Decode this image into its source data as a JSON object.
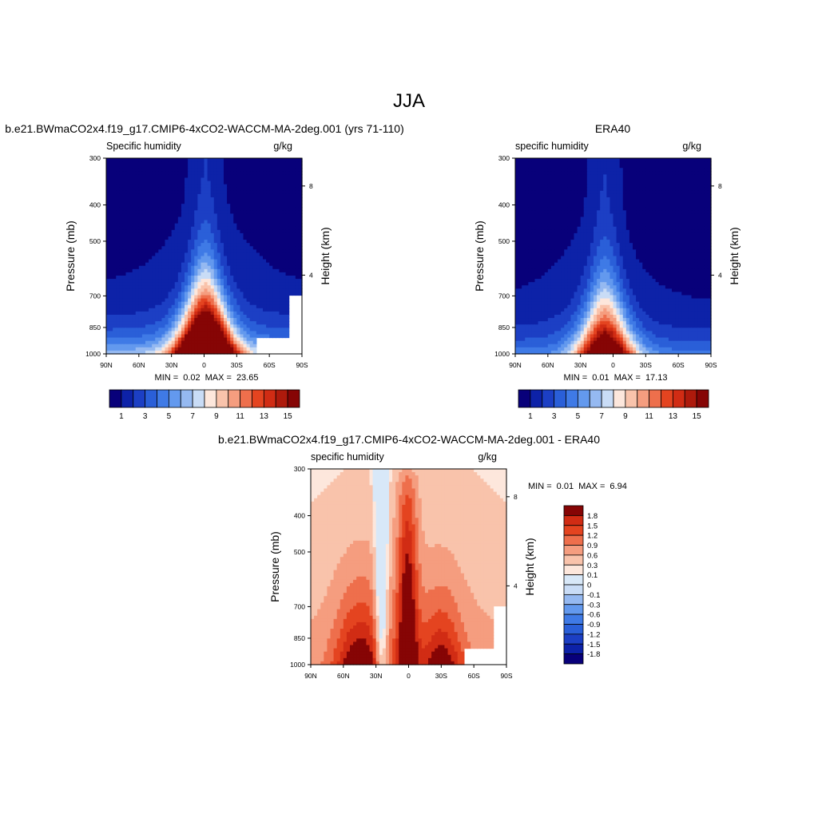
{
  "page_title": "JJA",
  "chart_data": [
    {
      "id": "model",
      "type": "contour",
      "title": "b.e21.BWmaCO2x4.f19_g17.CMIP6-4xCO2-WACCM-MA-2deg.001 (yrs 71-110)",
      "left_label": "Specific humidity",
      "right_label": "g/kg",
      "ylabel": "Pressure (mb)",
      "ylabel_right": "Height (km)",
      "x_ticks": [
        "90N",
        "60N",
        "30N",
        "0",
        "30S",
        "60S",
        "90S"
      ],
      "y_ticks": [
        "300",
        "400",
        "500",
        "700",
        "850",
        "1000"
      ],
      "y_right_ticks": [
        "8",
        "4"
      ],
      "stats": {
        "min_label": "MIN =",
        "min": "0.02",
        "max_label": "MAX =",
        "max": "23.65"
      },
      "field": {
        "surface": 32,
        "peak_lat": -1,
        "left_mult": 0.74,
        "right_mult": 0.8,
        "left_floor": 1.5,
        "right_floor": 1.5,
        "mask_from_lat": 48
      },
      "colorbar": {
        "orientation": "horizontal",
        "labels": [
          "1",
          "3",
          "5",
          "7",
          "9",
          "11",
          "13",
          "15"
        ]
      }
    },
    {
      "id": "obs",
      "type": "contour",
      "title": "ERA40",
      "left_label": "specific humidity",
      "right_label": "g/kg",
      "ylabel": "Pressure (mb)",
      "ylabel_right": "Height (km)",
      "x_ticks": [
        "90N",
        "60N",
        "30N",
        "0",
        "30S",
        "60S",
        "90S"
      ],
      "y_ticks": [
        "300",
        "400",
        "500",
        "700",
        "850",
        "1000"
      ],
      "y_right_ticks": [
        "8",
        "4"
      ],
      "stats": {
        "min_label": "MIN =",
        "min": "0.01",
        "max_label": "MAX =",
        "max": "17.13"
      },
      "field": {
        "surface": 20,
        "peak_lat": 7,
        "left_mult": 0.88,
        "right_mult": 0.94,
        "left_floor": 1.3,
        "right_floor": 1.0,
        "mask_from_lat": null
      },
      "colorbar": {
        "orientation": "horizontal",
        "labels": [
          "1",
          "3",
          "5",
          "7",
          "9",
          "11",
          "13",
          "15"
        ]
      }
    },
    {
      "id": "diff",
      "type": "contour",
      "title": "b.e21.BWmaCO2x4.f19_g17.CMIP6-4xCO2-WACCM-MA-2deg.001 - ERA40",
      "left_label": "specific humidity",
      "right_label": "g/kg",
      "ylabel": "Pressure (mb)",
      "ylabel_right": "Height (km)",
      "x_ticks": [
        "90N",
        "60N",
        "30N",
        "0",
        "30S",
        "60S",
        "90S"
      ],
      "y_ticks": [
        "300",
        "400",
        "500",
        "700",
        "850",
        "1000"
      ],
      "y_right_ticks": [
        "8",
        "4"
      ],
      "stats": {
        "min_label": "MIN =",
        "min": "0.01",
        "max_label": "MAX =",
        "max": "6.94"
      },
      "field": {
        "mask_from_lat": 50
      },
      "colorbar": {
        "orientation": "vertical",
        "labels": [
          "1.8",
          "1.5",
          "1.2",
          "0.9",
          "0.6",
          "0.3",
          "0.1",
          "0",
          "-0.1",
          "-0.3",
          "-0.6",
          "-0.9",
          "-1.2",
          "-1.5",
          "-1.8"
        ]
      }
    }
  ],
  "colors": {
    "seq_palette": [
      "#08007a",
      "#0d22a8",
      "#1c3fc4",
      "#2a5fd8",
      "#3f7ae6",
      "#6399ee",
      "#95b9f1",
      "#c9dcf6",
      "#fde7dc",
      "#f9c3ab",
      "#f59d7f",
      "#ee6f4c",
      "#e44420",
      "#d12c14",
      "#ae1a0c",
      "#860505"
    ],
    "diff_palette": [
      "#08007a",
      "#0d22a8",
      "#1c3fc4",
      "#2a5fd8",
      "#3f7ae6",
      "#6399ee",
      "#95b9f1",
      "#c9dcf6",
      "#d8e8f8",
      "#fde7dc",
      "#f9c3ab",
      "#f59d7f",
      "#ee6f4c",
      "#e44420",
      "#d12c14",
      "#860505"
    ]
  }
}
